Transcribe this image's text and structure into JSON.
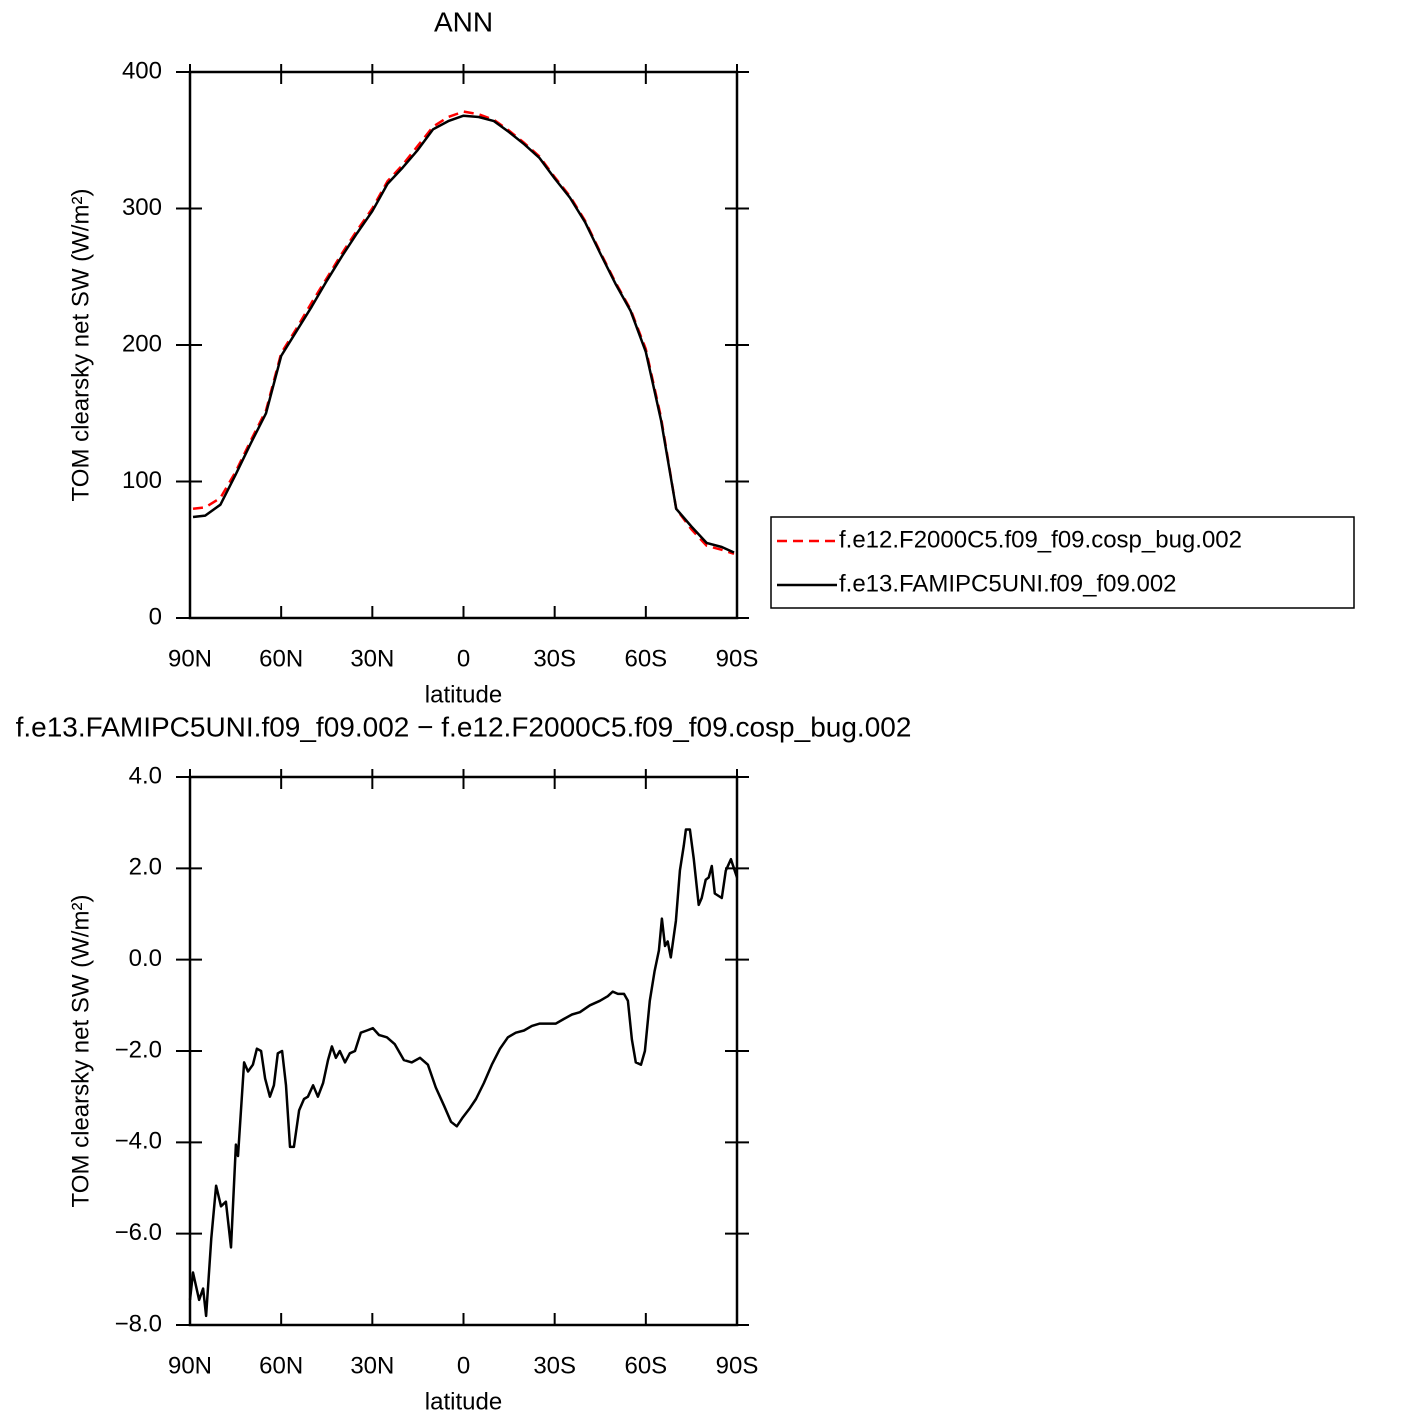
{
  "chart_data": [
    {
      "type": "line",
      "title": "ANN",
      "x_label": "latitude",
      "y_label": "TOM clearsky net SW (W/m²)",
      "x": [
        89,
        85,
        80,
        75,
        70,
        65,
        60,
        55,
        50,
        45,
        40,
        35,
        30,
        25,
        20,
        15,
        10,
        5,
        0,
        -5,
        -10,
        -15,
        -20,
        -25,
        -30,
        -35,
        -40,
        -45,
        -50,
        -55,
        -60,
        -65,
        -70,
        -75,
        -80,
        -85,
        -89
      ],
      "series": [
        {
          "name": "f.e12.F2000C5.f09_f09.cosp_bug.002",
          "color": "#ff0000",
          "line_style": "dashed",
          "values": [
            80,
            81,
            88,
            107,
            130,
            152,
            194,
            212,
            231,
            249,
            267,
            284,
            300,
            320,
            332,
            346,
            360,
            367,
            371,
            369,
            365,
            357,
            348,
            338,
            323,
            309,
            291,
            268,
            246,
            226,
            197,
            147,
            80,
            65,
            53,
            50,
            47
          ]
        },
        {
          "name": "f.e13.FAMIPC5UNI.f09_f09.002",
          "color": "#000000",
          "line_style": "solid",
          "values": [
            74,
            75,
            83,
            105,
            128,
            150,
            192,
            210,
            228,
            247,
            265,
            282,
            298,
            318,
            330,
            343,
            358,
            364,
            368,
            367,
            364,
            356,
            347,
            337,
            322,
            308,
            290,
            267,
            245,
            225,
            195,
            145,
            80,
            67,
            55,
            52,
            48
          ]
        }
      ],
      "xlim": [
        90,
        -90
      ],
      "xticks": [
        {
          "value": 90,
          "label": "90N"
        },
        {
          "value": 60,
          "label": "60N"
        },
        {
          "value": 30,
          "label": "30N"
        },
        0,
        {
          "value": -30,
          "label": "30S"
        },
        {
          "value": -60,
          "label": "60S"
        },
        {
          "value": -90,
          "label": "90S"
        }
      ],
      "ylim": [
        0,
        400
      ],
      "yticks": [
        0,
        100,
        200,
        300,
        400
      ],
      "legend": "right"
    },
    {
      "type": "line",
      "title": "f.e13.FAMIPC5UNI.f09_f09.002 − f.e12.F2000C5.f09_f09.cosp_bug.002",
      "x_label": "latitude",
      "y_label": "TOM clearsky net SW (W/m²)",
      "x": [
        90,
        89,
        87,
        85.7,
        84.7,
        83,
        81.4,
        79.8,
        78.2,
        76.5,
        74.9,
        74.2,
        72.2,
        70.9,
        69.3,
        68,
        66.6,
        65.3,
        63.7,
        62.4,
        61.1,
        59.7,
        58.4,
        57.1,
        55.8,
        54.1,
        52.5,
        51.2,
        49.5,
        47.9,
        46.2,
        44.6,
        43.3,
        42,
        40.7,
        39,
        37.4,
        35.7,
        33.8,
        31.8,
        29.8,
        27.8,
        25.2,
        22.6,
        19.6,
        17,
        14.3,
        11.7,
        9.1,
        6.4,
        4.1,
        2.2,
        0.2,
        -2.1,
        -4.1,
        -6.7,
        -9.3,
        -12,
        -14.6,
        -17.2,
        -19.9,
        -22.5,
        -25.1,
        -27.8,
        -30.4,
        -33,
        -35.7,
        -38.3,
        -41.6,
        -44.9,
        -47.5,
        -49.1,
        -50.8,
        -52.8,
        -54.1,
        -55.4,
        -56.7,
        -58.4,
        -59.7,
        -61.3,
        -62.9,
        -64.3,
        -65.3,
        -66.3,
        -67.2,
        -68.2,
        -69.9,
        -71.2,
        -72.5,
        -73.2,
        -74.5,
        -75.8,
        -77.4,
        -78.4,
        -79.7,
        -80.7,
        -81.7,
        -82.7,
        -85,
        -86.3,
        -88,
        -90
      ],
      "values": [
        -7.45,
        -6.85,
        -7.45,
        -7.2,
        -7.8,
        -6.1,
        -4.95,
        -5.4,
        -5.3,
        -6.3,
        -4.05,
        -4.3,
        -2.25,
        -2.45,
        -2.3,
        -1.95,
        -2.0,
        -2.6,
        -3.0,
        -2.75,
        -2.05,
        -2.0,
        -2.75,
        -4.1,
        -4.1,
        -3.3,
        -3.05,
        -3.0,
        -2.75,
        -3.0,
        -2.7,
        -2.2,
        -1.9,
        -2.15,
        -2.0,
        -2.25,
        -2.05,
        -2.0,
        -1.6,
        -1.55,
        -1.5,
        -1.65,
        -1.7,
        -1.85,
        -2.2,
        -2.25,
        -2.15,
        -2.3,
        -2.8,
        -3.2,
        -3.55,
        -3.65,
        -3.45,
        -3.25,
        -3.05,
        -2.7,
        -2.3,
        -1.95,
        -1.7,
        -1.6,
        -1.55,
        -1.45,
        -1.4,
        -1.4,
        -1.4,
        -1.3,
        -1.2,
        -1.15,
        -1.0,
        -0.9,
        -0.8,
        -0.7,
        -0.75,
        -0.75,
        -0.9,
        -1.75,
        -2.25,
        -2.3,
        -2.0,
        -0.9,
        -0.25,
        0.2,
        0.9,
        0.3,
        0.4,
        0.05,
        0.85,
        1.95,
        2.5,
        2.85,
        2.85,
        2.2,
        1.2,
        1.35,
        1.75,
        1.8,
        2.05,
        1.45,
        1.35,
        1.95,
        2.2,
        1.8
      ],
      "color": "#000000",
      "xlim": [
        90,
        -90
      ],
      "xticks": [
        {
          "value": 90,
          "label": "90N"
        },
        {
          "value": 60,
          "label": "60N"
        },
        {
          "value": 30,
          "label": "30N"
        },
        0,
        {
          "value": -30,
          "label": "30S"
        },
        {
          "value": -60,
          "label": "60S"
        },
        {
          "value": -90,
          "label": "90S"
        }
      ],
      "ylim": [
        -8,
        4
      ],
      "yticks": [
        {
          "value": -8,
          "label": "−8.0"
        },
        {
          "value": -6,
          "label": "−6.0"
        },
        {
          "value": -4,
          "label": "−4.0"
        },
        {
          "value": -2,
          "label": "−2.0"
        },
        {
          "value": 0,
          "label": "0.0"
        },
        {
          "value": 2,
          "label": "2.0"
        },
        {
          "value": 4,
          "label": "4.0"
        }
      ]
    }
  ]
}
